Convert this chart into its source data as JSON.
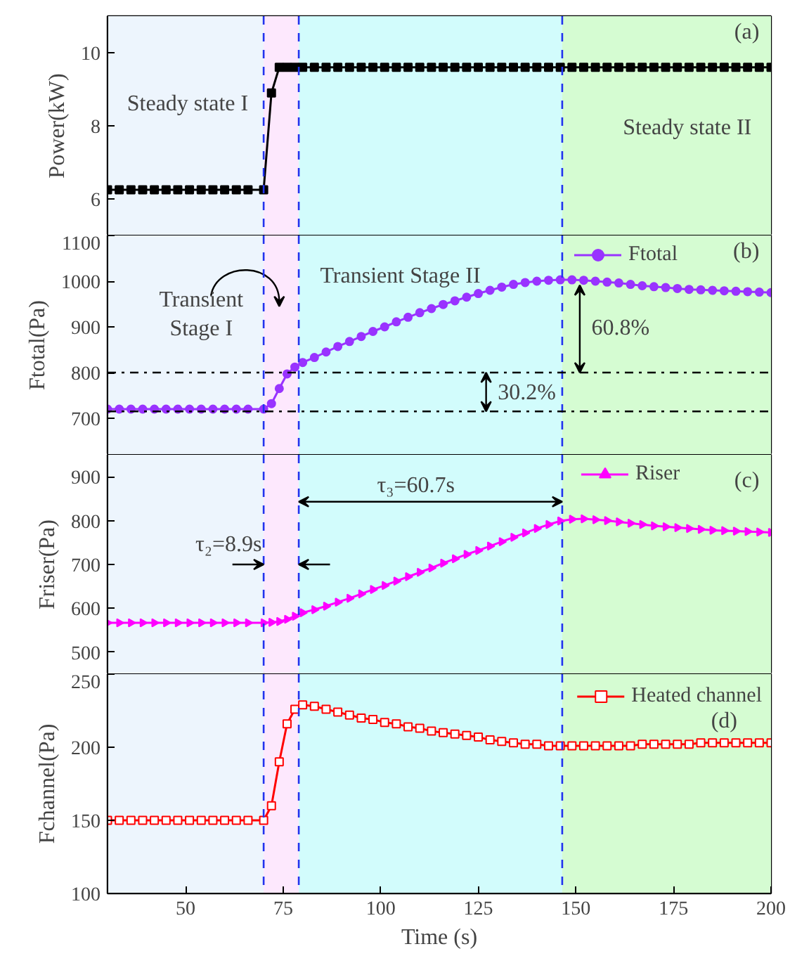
{
  "chart_data": [
    {
      "type": "line",
      "xlim": [
        30,
        200
      ],
      "xticks": [
        50,
        75,
        100,
        125,
        150,
        175,
        200
      ],
      "ylim": [
        5,
        11
      ],
      "yticks": [
        6,
        8,
        10
      ],
      "ylabel": "Power(kW)",
      "tick_labels": "y",
      "marker": "square",
      "legend": false,
      "x": [
        30,
        33,
        36,
        39,
        42,
        45,
        48,
        51,
        54,
        57,
        60,
        63,
        66,
        70,
        72,
        74,
        76,
        78,
        80,
        83,
        86,
        89,
        92,
        95,
        98,
        101,
        104,
        107,
        110,
        113,
        116,
        119,
        122,
        125,
        128,
        131,
        134,
        137,
        140,
        143,
        146,
        149,
        152,
        155,
        158,
        161,
        164,
        167,
        170,
        173,
        176,
        179,
        182,
        185,
        188,
        191,
        194,
        197,
        200
      ],
      "series": [
        {
          "color": "#000000",
          "values": [
            6.25,
            6.25,
            6.25,
            6.25,
            6.25,
            6.25,
            6.25,
            6.25,
            6.25,
            6.25,
            6.25,
            6.25,
            6.25,
            6.25,
            8.9,
            9.6,
            9.6,
            9.6,
            9.6,
            9.6,
            9.6,
            9.6,
            9.6,
            9.6,
            9.6,
            9.6,
            9.6,
            9.6,
            9.6,
            9.6,
            9.6,
            9.6,
            9.6,
            9.6,
            9.6,
            9.6,
            9.6,
            9.6,
            9.6,
            9.6,
            9.6,
            9.6,
            9.6,
            9.6,
            9.6,
            9.6,
            9.6,
            9.6,
            9.6,
            9.6,
            9.6,
            9.6,
            9.6,
            9.6,
            9.6,
            9.6,
            9.6,
            9.6,
            9.6
          ]
        }
      ],
      "bands": [
        {
          "axis": "x",
          "from": 30,
          "to": 70,
          "color": "#edf5fd"
        },
        {
          "axis": "x",
          "from": 70,
          "to": 79,
          "color": "#fde8fd"
        },
        {
          "axis": "x",
          "from": 79,
          "to": 146.5,
          "color": "#d2fcfc"
        },
        {
          "axis": "x",
          "from": 146.5,
          "to": 200,
          "color": "#d5fcd2"
        }
      ],
      "ref_lines": [
        {
          "axis": "x",
          "value": 70,
          "color": "#2233ee",
          "line_style": "dashed"
        },
        {
          "axis": "x",
          "value": 79,
          "color": "#2233ee",
          "line_style": "dashed"
        },
        {
          "axis": "x",
          "value": 146.5,
          "color": "#2233ee",
          "line_style": "dashed"
        }
      ],
      "annotations": [
        "(a)",
        "Steady state I",
        "Steady state II"
      ]
    },
    {
      "type": "line",
      "xlim": [
        30,
        200
      ],
      "xticks": [
        50,
        75,
        100,
        125,
        150,
        175,
        200
      ],
      "ylim": [
        620,
        1100
      ],
      "yticks": [
        700,
        800,
        900,
        1000,
        1100
      ],
      "ylabel": "Ftotal(Pa)",
      "tick_labels": "y",
      "marker": "circle",
      "legend": "top right",
      "x": [
        30,
        33,
        36,
        39,
        42,
        45,
        48,
        51,
        54,
        57,
        60,
        63,
        66,
        70,
        72,
        74,
        76,
        78,
        80,
        83,
        86,
        89,
        92,
        95,
        98,
        101,
        104,
        107,
        110,
        113,
        116,
        119,
        122,
        125,
        128,
        131,
        134,
        137,
        140,
        143,
        146,
        149,
        152,
        155,
        158,
        161,
        164,
        167,
        170,
        173,
        176,
        179,
        182,
        185,
        188,
        191,
        194,
        197,
        200
      ],
      "series": [
        {
          "name": "Ftotal",
          "color": "#9933ff",
          "values": [
            720,
            720,
            720,
            720,
            720,
            720,
            720,
            720,
            720,
            720,
            720,
            720,
            720,
            720,
            732,
            765,
            797,
            812,
            822,
            833,
            845,
            857,
            868,
            879,
            890,
            900,
            911,
            921,
            931,
            940,
            949,
            957,
            965,
            973,
            980,
            987,
            993,
            997,
            1000,
            1002,
            1003,
            1003,
            1002,
            1000,
            998,
            996,
            993,
            990,
            988,
            986,
            984,
            982,
            981,
            980,
            979,
            978,
            977,
            976,
            975
          ]
        }
      ],
      "bands": [
        {
          "axis": "x",
          "from": 30,
          "to": 70,
          "color": "#edf5fd"
        },
        {
          "axis": "x",
          "from": 70,
          "to": 79,
          "color": "#fde8fd"
        },
        {
          "axis": "x",
          "from": 79,
          "to": 146.5,
          "color": "#d2fcfc"
        },
        {
          "axis": "x",
          "from": 146.5,
          "to": 200,
          "color": "#d5fcd2"
        }
      ],
      "ref_lines": [
        {
          "axis": "x",
          "value": 70,
          "color": "#2233ee",
          "line_style": "dashed"
        },
        {
          "axis": "x",
          "value": 79,
          "color": "#2233ee",
          "line_style": "dashed"
        },
        {
          "axis": "x",
          "value": 146.5,
          "color": "#2233ee",
          "line_style": "dashed"
        },
        {
          "axis": "y",
          "value": 800,
          "color": "#000000",
          "line_style": "dotted"
        },
        {
          "axis": "y",
          "value": 715,
          "color": "#000000",
          "line_style": "dotted"
        }
      ],
      "annotations": [
        "(b)",
        "Transient\nStage I",
        "Transient Stage II",
        {
          "text": "60.8%",
          "x": 151,
          "y": 800
        },
        {
          "text": "30.2%",
          "x": 127,
          "y": 715
        }
      ]
    },
    {
      "type": "line",
      "xlim": [
        30,
        200
      ],
      "xticks": [
        50,
        75,
        100,
        125,
        150,
        175,
        200
      ],
      "ylim": [
        450,
        950
      ],
      "yticks": [
        500,
        600,
        700,
        800,
        900
      ],
      "ylabel": "Friser(Pa)",
      "tick_labels": "y",
      "marker": "triangle",
      "legend": "top right",
      "x": [
        30,
        33,
        36,
        39,
        42,
        45,
        48,
        51,
        54,
        57,
        60,
        63,
        66,
        70,
        72,
        74,
        76,
        78,
        80,
        83,
        86,
        89,
        92,
        95,
        98,
        101,
        104,
        107,
        110,
        113,
        116,
        119,
        122,
        125,
        128,
        131,
        134,
        137,
        140,
        143,
        146,
        149,
        152,
        155,
        158,
        161,
        164,
        167,
        170,
        173,
        176,
        179,
        182,
        185,
        188,
        191,
        194,
        197,
        200
      ],
      "series": [
        {
          "name": "Riser",
          "color": "#ff00ff",
          "values": [
            567,
            567,
            567,
            567,
            567,
            567,
            567,
            567,
            567,
            567,
            567,
            567,
            567,
            567,
            568,
            570,
            575,
            582,
            590,
            597,
            605,
            614,
            623,
            633,
            643,
            652,
            662,
            672,
            682,
            692,
            703,
            713,
            723,
            732,
            742,
            752,
            762,
            772,
            782,
            791,
            799,
            803,
            804,
            802,
            800,
            797,
            794,
            791,
            788,
            786,
            784,
            782,
            780,
            778,
            777,
            776,
            775,
            774,
            773
          ]
        }
      ],
      "bands": [
        {
          "axis": "x",
          "from": 30,
          "to": 70,
          "color": "#edf5fd"
        },
        {
          "axis": "x",
          "from": 70,
          "to": 79,
          "color": "#fde8fd"
        },
        {
          "axis": "x",
          "from": 79,
          "to": 146.5,
          "color": "#d2fcfc"
        },
        {
          "axis": "x",
          "from": 146.5,
          "to": 200,
          "color": "#d5fcd2"
        }
      ],
      "ref_lines": [
        {
          "axis": "x",
          "value": 70,
          "color": "#2233ee",
          "line_style": "dashed"
        },
        {
          "axis": "x",
          "value": 79,
          "color": "#2233ee",
          "line_style": "dashed"
        },
        {
          "axis": "x",
          "value": 146.5,
          "color": "#2233ee",
          "line_style": "dashed"
        }
      ],
      "annotations": [
        "(c)",
        "τ₃=60.7s",
        "τ₂=8.9s"
      ]
    },
    {
      "type": "line",
      "xlim": [
        30,
        200
      ],
      "xticks": [
        50,
        75,
        100,
        125,
        150,
        175,
        200
      ],
      "ylim": [
        100,
        250
      ],
      "yticks": [
        100,
        150,
        200,
        250
      ],
      "ylabel": "Fchannel(Pa)",
      "xlabel": "Time (s)",
      "marker": "square",
      "legend": "top right",
      "x": [
        30,
        33,
        36,
        39,
        42,
        45,
        48,
        51,
        54,
        57,
        60,
        63,
        66,
        70,
        72,
        74,
        76,
        78,
        80,
        83,
        86,
        89,
        92,
        95,
        98,
        101,
        104,
        107,
        110,
        113,
        116,
        119,
        122,
        125,
        128,
        131,
        134,
        137,
        140,
        143,
        146,
        149,
        152,
        155,
        158,
        161,
        164,
        167,
        170,
        173,
        176,
        179,
        182,
        185,
        188,
        191,
        194,
        197,
        200
      ],
      "series": [
        {
          "name": "Heated channel",
          "color": "#ff0000",
          "values": [
            150,
            150,
            150,
            150,
            150,
            150,
            150,
            150,
            150,
            150,
            150,
            150,
            150,
            150,
            160,
            190,
            216,
            226,
            229,
            228,
            226,
            224,
            222,
            220,
            219,
            217,
            216,
            214,
            213,
            211,
            210,
            209,
            208,
            207,
            205,
            204,
            203,
            202,
            202,
            201,
            201,
            201,
            201,
            201,
            201,
            201,
            201,
            202,
            202,
            202,
            202,
            202,
            203,
            203,
            203,
            203,
            203,
            203,
            203
          ]
        }
      ],
      "bands": [
        {
          "axis": "x",
          "from": 30,
          "to": 70,
          "color": "#edf5fd"
        },
        {
          "axis": "x",
          "from": 70,
          "to": 79,
          "color": "#fde8fd"
        },
        {
          "axis": "x",
          "from": 79,
          "to": 146.5,
          "color": "#d2fcfc"
        },
        {
          "axis": "x",
          "from": 146.5,
          "to": 200,
          "color": "#d5fcd2"
        }
      ],
      "ref_lines": [
        {
          "axis": "x",
          "value": 70,
          "color": "#2233ee",
          "line_style": "dashed"
        },
        {
          "axis": "x",
          "value": 79,
          "color": "#2233ee",
          "line_style": "dashed"
        },
        {
          "axis": "x",
          "value": 146.5,
          "color": "#2233ee",
          "line_style": "dashed"
        }
      ],
      "annotations": [
        "(d)"
      ]
    }
  ]
}
